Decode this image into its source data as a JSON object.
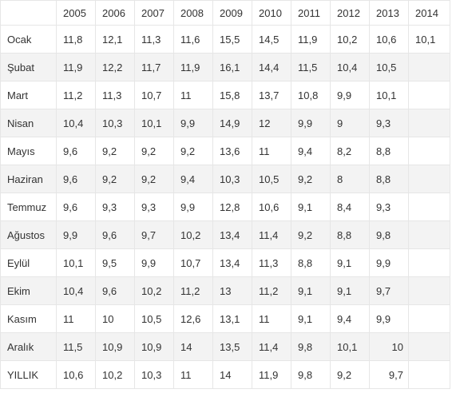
{
  "table": {
    "corner": "",
    "years": [
      "2005",
      "2006",
      "2007",
      "2008",
      "2009",
      "2010",
      "2011",
      "2012",
      "2013",
      "2014"
    ],
    "rows": [
      {
        "label": "Ocak",
        "values": [
          "11,8",
          "12,1",
          "11,3",
          "11,6",
          "15,5",
          "14,5",
          "11,9",
          "10,2",
          "10,6",
          "10,1"
        ]
      },
      {
        "label": "Şubat",
        "values": [
          "11,9",
          "12,2",
          "11,7",
          "11,9",
          "16,1",
          "14,4",
          "11,5",
          "10,4",
          "10,5",
          ""
        ]
      },
      {
        "label": "Mart",
        "values": [
          "11,2",
          "11,3",
          "10,7",
          "11",
          "15,8",
          "13,7",
          "10,8",
          "9,9",
          "10,1",
          ""
        ]
      },
      {
        "label": "Nisan",
        "values": [
          "10,4",
          "10,3",
          "10,1",
          "9,9",
          "14,9",
          "12",
          "9,9",
          "9",
          "9,3",
          ""
        ]
      },
      {
        "label": "Mayıs",
        "values": [
          "9,6",
          "9,2",
          "9,2",
          "9,2",
          "13,6",
          "11",
          "9,4",
          "8,2",
          "8,8",
          ""
        ]
      },
      {
        "label": "Haziran",
        "values": [
          "9,6",
          "9,2",
          "9,2",
          "9,4",
          "10,3",
          "10,5",
          "9,2",
          "8",
          "8,8",
          ""
        ]
      },
      {
        "label": "Temmuz",
        "values": [
          "9,6",
          "9,3",
          "9,3",
          "9,9",
          "12,8",
          "10,6",
          "9,1",
          "8,4",
          "9,3",
          ""
        ]
      },
      {
        "label": "Ağustos",
        "values": [
          "9,9",
          "9,6",
          "9,7",
          "10,2",
          "13,4",
          "11,4",
          "9,2",
          "8,8",
          "9,8",
          ""
        ]
      },
      {
        "label": "Eylül",
        "values": [
          "10,1",
          "9,5",
          "9,9",
          "10,7",
          "13,4",
          "11,3",
          "8,8",
          "9,1",
          "9,9",
          ""
        ]
      },
      {
        "label": "Ekim",
        "values": [
          "10,4",
          "9,6",
          "10,2",
          "11,2",
          "13",
          "11,2",
          "9,1",
          "9,1",
          "9,7",
          ""
        ]
      },
      {
        "label": "Kasım",
        "values": [
          "11",
          "10",
          "10,5",
          "12,6",
          "13,1",
          "11",
          "9,1",
          "9,4",
          "9,9",
          ""
        ]
      },
      {
        "label": "Aralık",
        "values": [
          "11,5",
          "10,9",
          "10,9",
          "14",
          "13,5",
          "11,4",
          "9,8",
          "10,1",
          "10",
          ""
        ]
      },
      {
        "label": "YILLIK",
        "values": [
          "10,6",
          "10,2",
          "10,3",
          "11",
          "14",
          "11,9",
          "9,8",
          "9,2",
          "9,7",
          ""
        ]
      }
    ]
  }
}
